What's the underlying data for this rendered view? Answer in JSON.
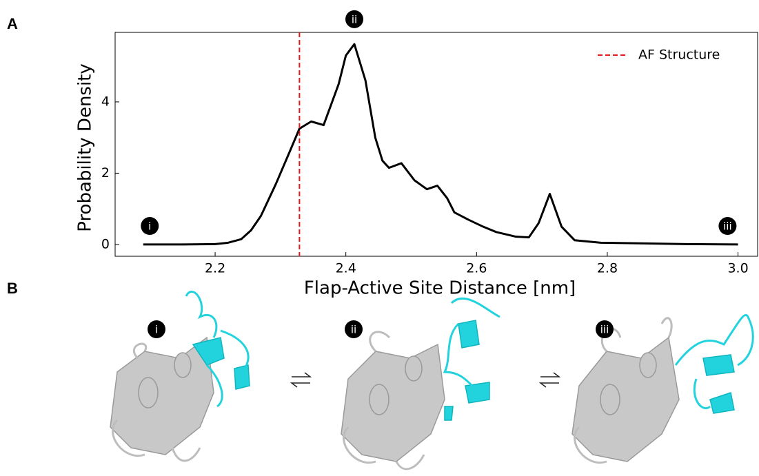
{
  "panels": {
    "a": "A",
    "b": "B"
  },
  "chart_data": {
    "type": "line",
    "xlabel": "Flap-Active Site Distance [nm]",
    "ylabel": "Probability Density",
    "x": [
      2.09,
      2.15,
      2.2,
      2.22,
      2.24,
      2.255,
      2.27,
      2.293,
      2.314,
      2.329,
      2.347,
      2.366,
      2.389,
      2.4,
      2.413,
      2.43,
      2.445,
      2.456,
      2.466,
      2.485,
      2.505,
      2.524,
      2.54,
      2.555,
      2.566,
      2.587,
      2.61,
      2.63,
      2.66,
      2.68,
      2.695,
      2.712,
      2.73,
      2.75,
      2.79,
      2.86,
      2.92,
      3.0
    ],
    "series": [
      {
        "color": "#000000",
        "values": [
          0,
          0,
          0.01,
          0.05,
          0.15,
          0.4,
          0.8,
          1.7,
          2.6,
          3.25,
          3.45,
          3.35,
          4.5,
          5.3,
          5.62,
          4.6,
          3.0,
          2.35,
          2.15,
          2.28,
          1.8,
          1.55,
          1.65,
          1.3,
          0.9,
          0.7,
          0.5,
          0.35,
          0.22,
          0.2,
          0.6,
          1.42,
          0.5,
          0.12,
          0.05,
          0.03,
          0.01,
          0
        ]
      }
    ],
    "reference_line": {
      "name": "AF Structure",
      "x": 2.329,
      "color": "#e41a1c"
    },
    "legend": "upper right",
    "xlim": [
      2.047,
      3.03
    ],
    "ylim": [
      -0.33,
      5.95
    ],
    "xticks": [
      2.2,
      2.4,
      2.6,
      2.8,
      {
        "value": 3,
        "label": "3.0"
      }
    ],
    "yticks": [
      0,
      2,
      4
    ],
    "annotations": [
      {
        "text": "i",
        "x": 2.1,
        "y": 0.52
      },
      {
        "text": "ii",
        "x": 2.413,
        "y": 6.32
      },
      {
        "text": "iii",
        "x": 2.984,
        "y": 0.52
      }
    ]
  },
  "structures": [
    {
      "label": "i"
    },
    {
      "label": "ii"
    },
    {
      "label": "iii"
    }
  ]
}
